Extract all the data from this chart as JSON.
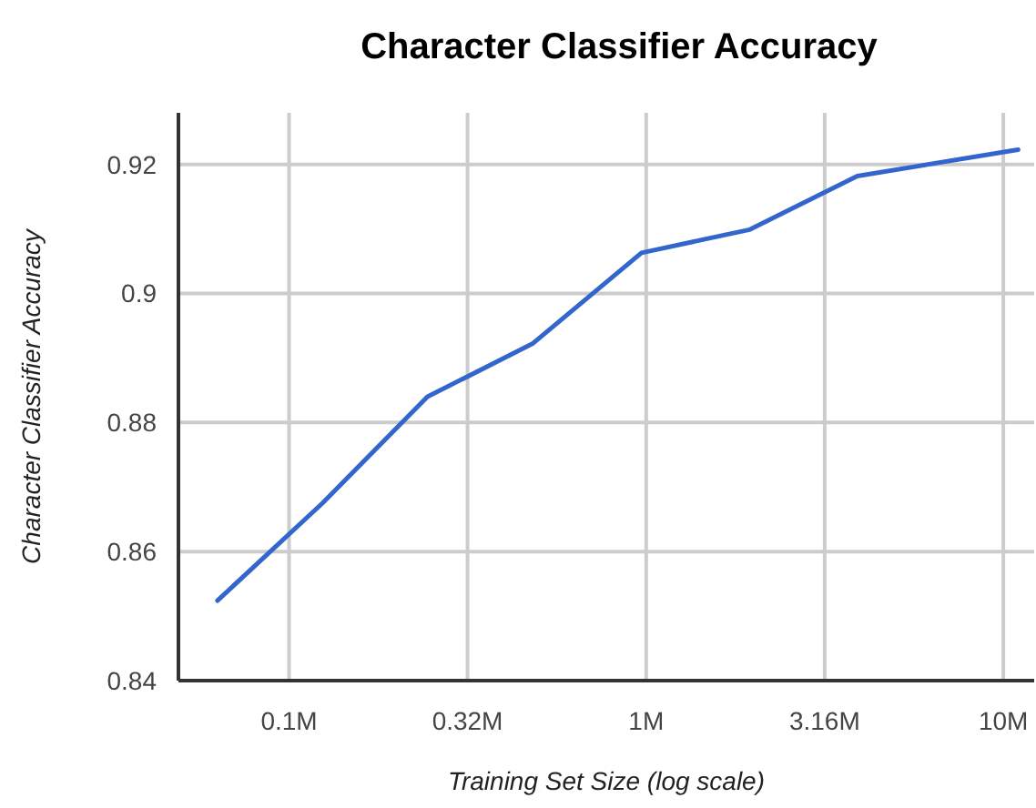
{
  "chart_data": {
    "type": "line",
    "title": "Character Classifier Accuracy",
    "xlabel": "Training Set Size (log scale)",
    "ylabel": "Character Classifier Accuracy",
    "x": [
      0.063,
      0.124,
      0.244,
      0.48,
      0.97,
      1.95,
      3.9,
      11
    ],
    "series": [
      {
        "color": "#3366cc",
        "values": [
          0.8524,
          0.8675,
          0.884,
          0.8922,
          0.9063,
          0.9099,
          0.9182,
          0.9223
        ]
      }
    ],
    "log": "x",
    "xlim": [
      0.049,
      12.2
    ],
    "ylim": [
      0.84,
      0.928
    ],
    "xticks": [
      {
        "value": 0.1,
        "label": "0.1M"
      },
      {
        "value": 0.316,
        "label": "0.32M"
      },
      {
        "value": 1,
        "label": "1M"
      },
      {
        "value": 3.16,
        "label": "3.16M"
      },
      {
        "value": 10,
        "label": "10M"
      }
    ],
    "yticks": [
      0.84,
      0.86,
      0.88,
      0.9,
      0.92
    ],
    "grid": true,
    "marker": "none",
    "line_style": "solid"
  }
}
